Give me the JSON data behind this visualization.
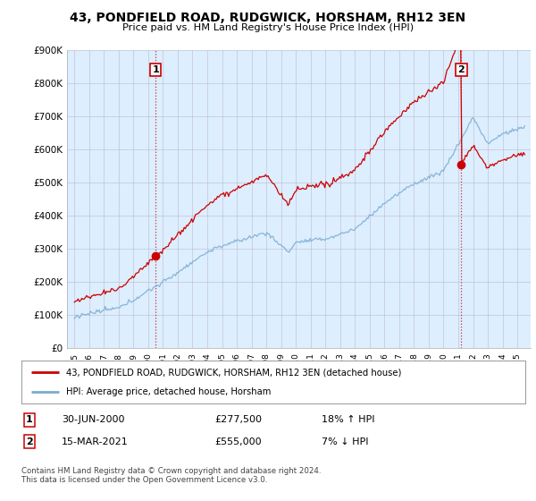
{
  "title": "43, PONDFIELD ROAD, RUDGWICK, HORSHAM, RH12 3EN",
  "subtitle": "Price paid vs. HM Land Registry's House Price Index (HPI)",
  "legend_label_red": "43, PONDFIELD ROAD, RUDGWICK, HORSHAM, RH12 3EN (detached house)",
  "legend_label_blue": "HPI: Average price, detached house, Horsham",
  "sale1_date": "30-JUN-2000",
  "sale1_price": "£277,500",
  "sale1_hpi": "18% ↑ HPI",
  "sale2_date": "15-MAR-2021",
  "sale2_price": "£555,000",
  "sale2_hpi": "7% ↓ HPI",
  "footer": "Contains HM Land Registry data © Crown copyright and database right 2024.\nThis data is licensed under the Open Government Licence v3.0.",
  "ylim": [
    0,
    900000
  ],
  "red_color": "#cc0000",
  "blue_color": "#7aabcf",
  "bg_fill": "#ddeeff",
  "marker1_x": 2000.5,
  "marker1_y": 277500,
  "marker2_x": 2021.21,
  "marker2_y": 555000,
  "background_color": "#ffffff",
  "xmin": 1994.5,
  "xmax": 2025.9
}
